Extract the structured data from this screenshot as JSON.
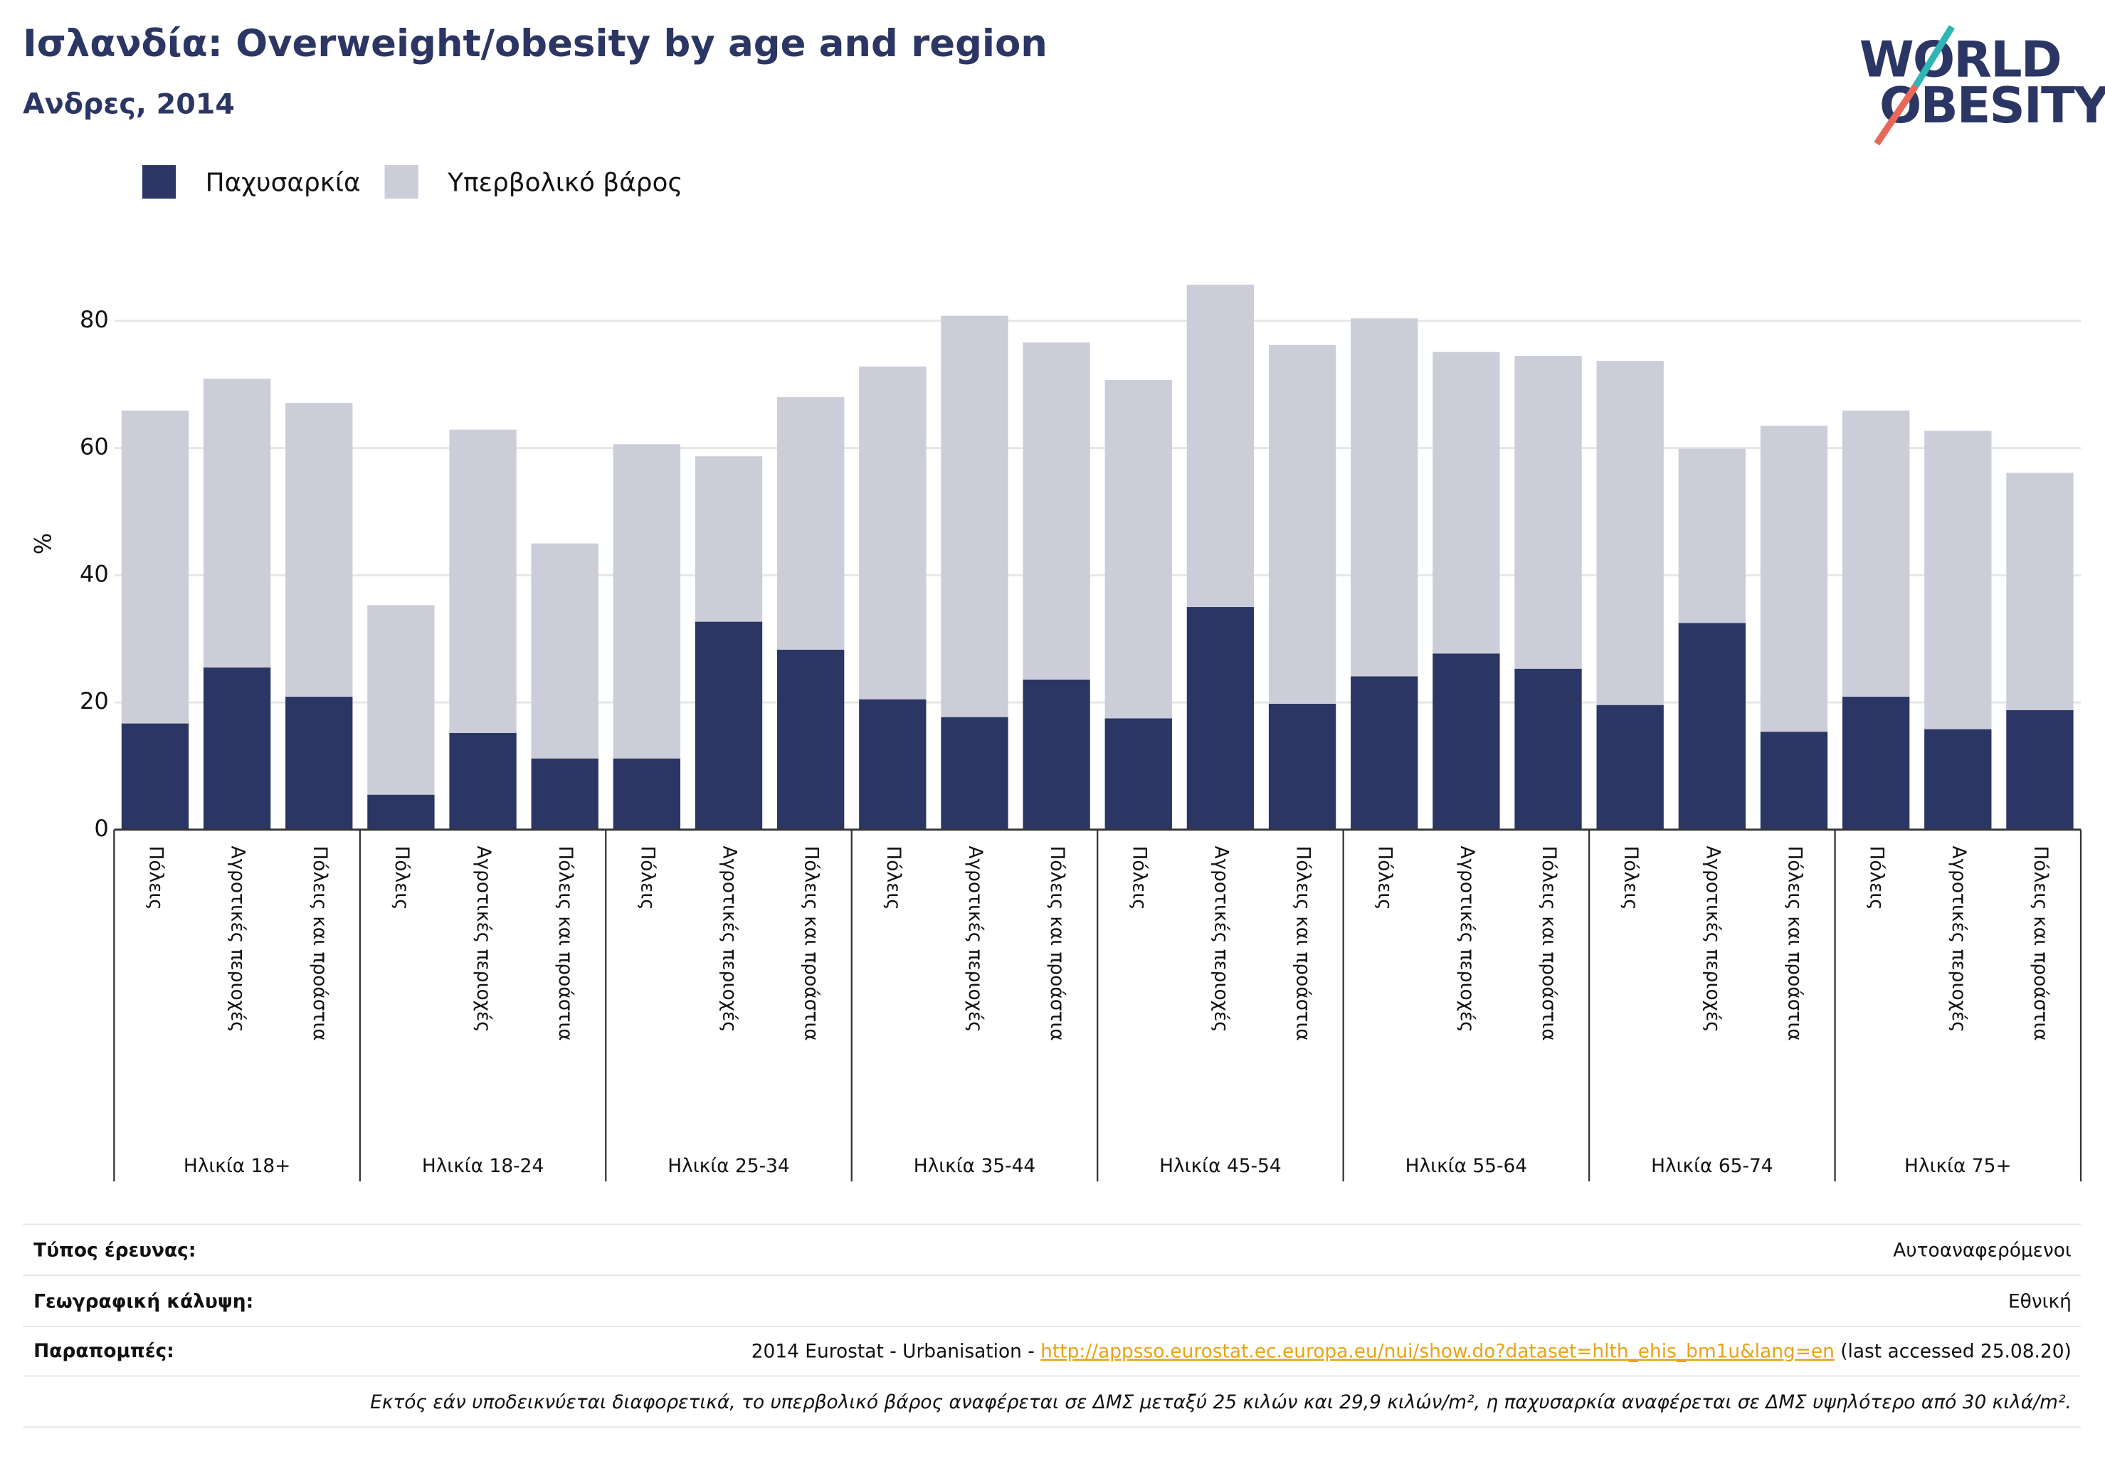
{
  "title": "Ισλανδία: Overweight/obesity by age and region",
  "subtitle": "Ανδρες, 2014",
  "logo": {
    "line1": "WORLD",
    "line2": "OBESITY"
  },
  "chart_data": {
    "type": "stacked_bar",
    "y_label": "%",
    "categories": [
      "Πόλεις",
      "Αγροτικές περιοχές",
      "Πόλεις και προάστια",
      "Πόλεις",
      "Αγροτικές περιοχές",
      "Πόλεις και προάστια",
      "Πόλεις",
      "Αγροτικές περιοχές",
      "Πόλεις και προάστια",
      "Πόλεις",
      "Αγροτικές περιοχές",
      "Πόλεις και προάστια",
      "Πόλεις",
      "Αγροτικές περιοχές",
      "Πόλεις και προάστια",
      "Πόλεις",
      "Αγροτικές περιοχές",
      "Πόλεις και προάστια",
      "Πόλεις",
      "Αγροτικές περιοχές",
      "Πόλεις και προάστια",
      "Πόλεις",
      "Αγροτικές περιοχές",
      "Πόλεις και προάστια"
    ],
    "groups": [
      "Ηλικία 18+",
      "Ηλικία 18-24",
      "Ηλικία 25-34",
      "Ηλικία 35-44",
      "Ηλικία 45-54",
      "Ηλικία 55-64",
      "Ηλικία 65-74",
      "Ηλικία 75+"
    ],
    "series": [
      {
        "name": "Παχυσαρκία",
        "color": "#2b3664",
        "values": [
          16.7,
          25.5,
          20.9,
          5.5,
          15.2,
          11.2,
          11.2,
          32.7,
          28.3,
          20.5,
          17.7,
          23.6,
          17.5,
          35.0,
          19.8,
          24.1,
          27.7,
          25.3,
          19.6,
          32.5,
          15.4,
          20.9,
          15.8,
          18.8
        ]
      },
      {
        "name": "Υπερβολικό βάρος",
        "color": "#cbcdd8",
        "values": [
          49.2,
          45.4,
          46.2,
          29.8,
          47.7,
          33.8,
          49.4,
          26.0,
          39.7,
          52.3,
          63.1,
          53.0,
          53.2,
          50.7,
          56.4,
          56.3,
          47.4,
          49.2,
          54.1,
          27.4,
          48.1,
          45.0,
          46.9,
          37.3
        ]
      }
    ],
    "ylim": [
      0,
      89
    ],
    "yticks": [
      0,
      20,
      40,
      60,
      80
    ],
    "grid": true
  },
  "footer": {
    "rows": [
      {
        "label": "Τύπος έρευνας:",
        "value": "Αυτοαναφερόμενοι"
      },
      {
        "label": "Γεωγραφική κάλυψη:",
        "value": "Εθνική"
      }
    ],
    "references": {
      "label": "Παραπομπές:",
      "prefix": "2014 Eurostat - Urbanisation - ",
      "link": "http://appsso.eurostat.ec.europa.eu/nui/show.do?dataset=hlth_ehis_bm1u&lang=en",
      "suffix": " (last accessed 25.08.20)"
    },
    "note": "Εκτός εάν υποδεικνύεται διαφορετικά, το υπερβολικό βάρος αναφέρεται σε ΔΜΣ μεταξύ 25 κιλών και 29,9 κιλών/m², η παχυσαρκία αναφέρεται σε ΔΜΣ υψηλότερο από 30 κιλά/m²."
  }
}
